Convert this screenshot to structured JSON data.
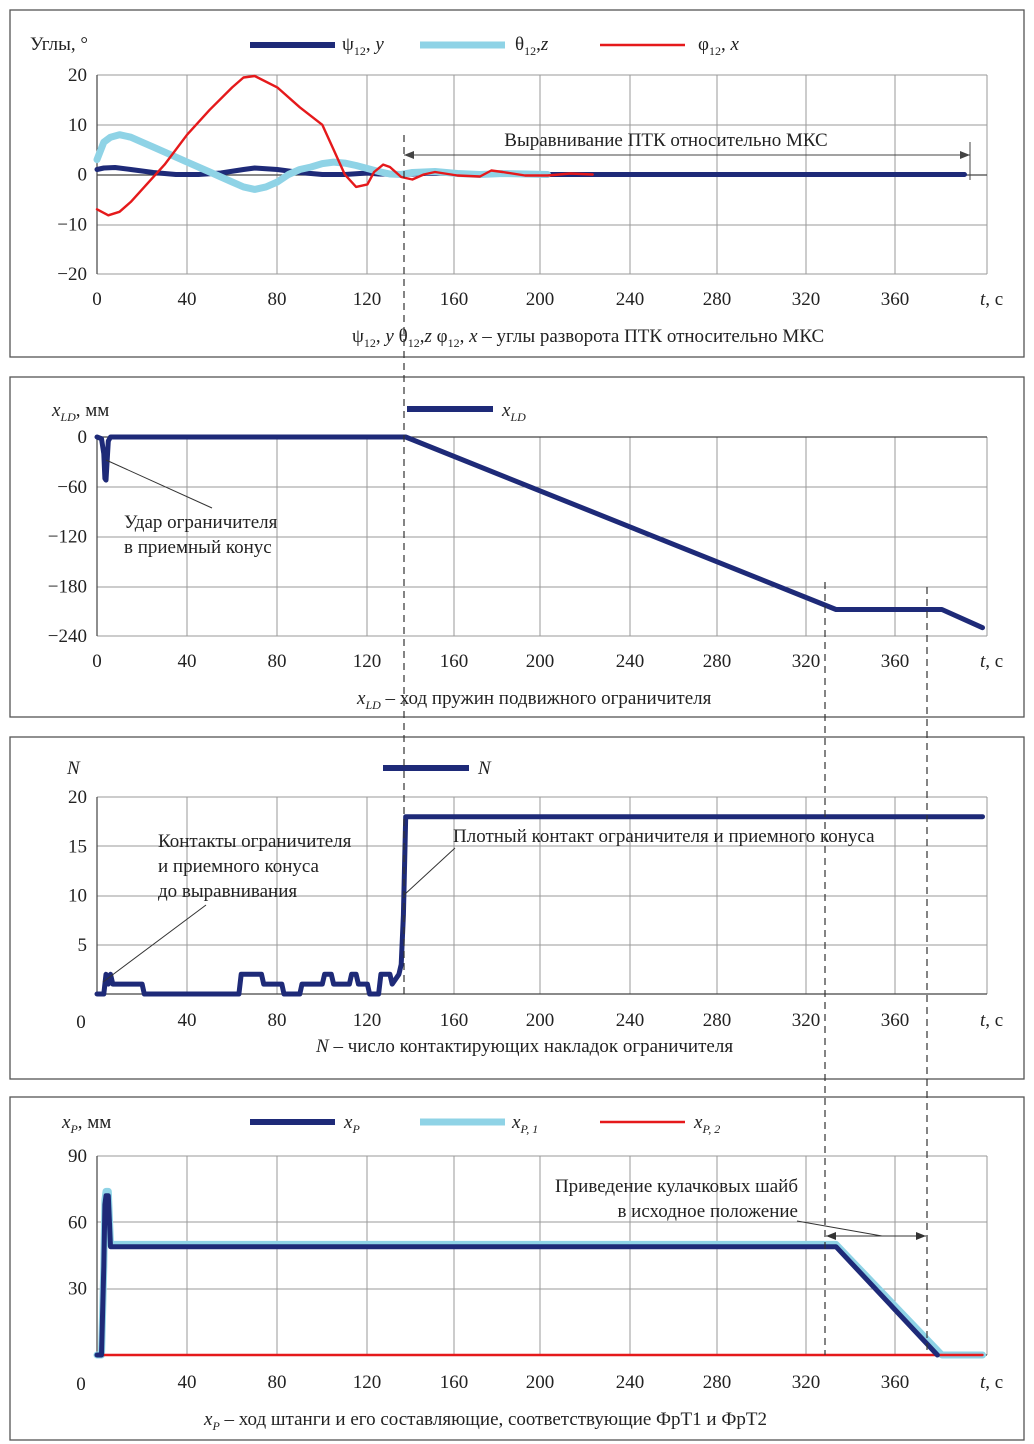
{
  "colors": {
    "dark_navy": "#1e2a78",
    "light_blue": "#8fd3e6",
    "red": "#e5191b",
    "grid": "#9a9a9a",
    "text": "#222222"
  },
  "chart_data": [
    {
      "type": "line",
      "ylabel": "Углы, °",
      "xlabel": "t, c",
      "x_ticks": [
        "0",
        "40",
        "80",
        "120",
        "160",
        "200",
        "240",
        "280",
        "320",
        "360"
      ],
      "y_ticks": [
        "20",
        "10",
        "0",
        "−10",
        "−20"
      ],
      "xlim": [
        0,
        395
      ],
      "ylim": [
        -20,
        20
      ],
      "grid": true,
      "legend_position": "top",
      "legend": [
        "ψ12, y",
        "θ12,z",
        "φ12, x"
      ],
      "annotations": [
        "Выравнивание ПТК относительно МКС"
      ],
      "caption": "ψ12, y  θ12,z  φ12, x – углы разворота ПТК относительно МКС",
      "series": [
        {
          "name": "ψ12, y",
          "color": "#1e2a78",
          "x": [
            0,
            3,
            8,
            15,
            25,
            35,
            45,
            55,
            65,
            70,
            80,
            90,
            100,
            110,
            120,
            125,
            135,
            145,
            155,
            165,
            175,
            185,
            200,
            250,
            300,
            350,
            385
          ],
          "y": [
            1,
            1.3,
            1.4,
            1,
            0.4,
            0,
            0,
            0.3,
            1,
            1.3,
            1,
            0.4,
            0,
            0,
            0.3,
            0.1,
            0,
            0.2,
            0.3,
            0.1,
            0,
            0.1,
            0,
            0,
            0,
            0,
            0
          ]
        },
        {
          "name": "θ12,z",
          "color": "#8fd3e6",
          "x": [
            0,
            3,
            6,
            10,
            15,
            20,
            25,
            30,
            40,
            50,
            60,
            65,
            70,
            75,
            80,
            85,
            90,
            95,
            100,
            105,
            110,
            115,
            120,
            125,
            130,
            135,
            140,
            150,
            160,
            170,
            180,
            200
          ],
          "y": [
            3,
            6.5,
            7.5,
            8,
            7.5,
            6.5,
            5.5,
            4.5,
            2.5,
            0.5,
            -1.5,
            -2.5,
            -3,
            -2.5,
            -1.5,
            0,
            1,
            1.5,
            2.2,
            2.5,
            2.3,
            1.8,
            1.2,
            0.6,
            0.1,
            0,
            0.4,
            0.6,
            0.2,
            0,
            0.2,
            0
          ]
        },
        {
          "name": "φ12, x",
          "color": "#e5191b",
          "x": [
            0,
            5,
            10,
            15,
            20,
            30,
            40,
            50,
            60,
            65,
            70,
            80,
            90,
            100,
            105,
            110,
            115,
            120,
            123,
            127,
            130,
            135,
            140,
            145,
            150,
            160,
            170,
            175,
            180,
            190,
            200,
            210,
            220
          ],
          "y": [
            -7,
            -8.2,
            -7.5,
            -5.5,
            -3,
            2,
            8,
            13,
            17.5,
            19.5,
            19.8,
            17.5,
            13.5,
            10,
            5,
            0,
            -2.5,
            -2,
            0.5,
            2,
            1.5,
            -0.5,
            -1,
            0,
            0.5,
            -0.2,
            -0.4,
            0.8,
            0.5,
            -0.2,
            -0.2,
            0.2,
            0
          ]
        }
      ]
    },
    {
      "type": "line",
      "ylabel": "xLD, мм",
      "xlabel": "t, c",
      "x_ticks": [
        "0",
        "40",
        "80",
        "120",
        "160",
        "200",
        "240",
        "280",
        "320",
        "360"
      ],
      "y_ticks": [
        "0",
        "−60",
        "−120",
        "−180",
        "−240"
      ],
      "xlim": [
        0,
        395
      ],
      "ylim": [
        -240,
        0
      ],
      "grid": true,
      "legend_position": "top",
      "legend": [
        "xLD"
      ],
      "annotations": [
        "Удар ограничителя",
        "в приемный конус"
      ],
      "caption": "xLD – ход пружин подвижного ограничителя",
      "series": [
        {
          "name": "xLD",
          "color": "#1e2a78",
          "x": [
            0,
            2,
            3,
            3.5,
            4,
            5,
            6,
            10,
            137,
            328,
            375,
            393
          ],
          "y": [
            0,
            -2,
            -20,
            -50,
            -52,
            -5,
            0,
            0,
            0,
            -208,
            -208,
            -230
          ]
        }
      ]
    },
    {
      "type": "line",
      "ylabel": "N",
      "xlabel": "t, c",
      "x_ticks": [
        "0",
        "40",
        "80",
        "120",
        "160",
        "200",
        "240",
        "280",
        "320",
        "360"
      ],
      "y_ticks": [
        "20",
        "15",
        "10",
        "5"
      ],
      "x_origin_label": "0",
      "xlim": [
        0,
        395
      ],
      "ylim": [
        0,
        20
      ],
      "grid": true,
      "legend_position": "top",
      "legend": [
        "N"
      ],
      "annotations": [
        "Контакты ограничителя",
        "и приемного конуса",
        "до выравнивания",
        "Плотный контакт ограничителя и приемного конуса"
      ],
      "caption": "N – число контактирующих накладок ограничителя",
      "series": [
        {
          "name": "N",
          "color": "#1e2a78",
          "x": [
            0,
            3,
            4,
            5,
            6,
            7,
            20,
            21,
            63,
            64,
            73,
            74,
            82,
            83,
            90,
            91,
            100,
            101,
            104,
            105,
            112,
            113,
            115,
            116,
            120,
            121,
            125,
            126,
            130,
            131,
            134,
            135,
            136,
            137,
            393
          ],
          "y": [
            0,
            0,
            2,
            1,
            2,
            1,
            1,
            0,
            0,
            2,
            2,
            1,
            1,
            0,
            0,
            1,
            1,
            2,
            2,
            1,
            1,
            2,
            2,
            1,
            1,
            0,
            0,
            2,
            2,
            1,
            2,
            3,
            8,
            18,
            18
          ]
        }
      ]
    },
    {
      "type": "line",
      "ylabel": "xP, мм",
      "xlabel": "t, c",
      "x_ticks": [
        "0",
        "40",
        "80",
        "120",
        "160",
        "200",
        "240",
        "280",
        "320",
        "360"
      ],
      "y_ticks": [
        "90",
        "60",
        "30"
      ],
      "x_origin_label": "0",
      "xlim": [
        0,
        395
      ],
      "ylim": [
        0,
        90
      ],
      "grid": true,
      "legend_position": "top",
      "legend": [
        "xP",
        "xP, 1",
        "xP, 2"
      ],
      "annotations": [
        "Приведение кулачковых шайб",
        "в исходное положение"
      ],
      "caption": "xP – ход штанги и его составляющие, соответствующие ФрТ1 и ФрТ2",
      "series": [
        {
          "name": "xP, 1",
          "color": "#8fd3e6",
          "x": [
            0,
            2,
            3,
            3.5,
            4,
            5,
            6,
            8,
            137,
            328,
            375,
            393
          ],
          "y": [
            0,
            0,
            40,
            70,
            74,
            74,
            50,
            50,
            50,
            50,
            0,
            0
          ]
        },
        {
          "name": "xP, 2",
          "color": "#e5191b",
          "x": [
            0,
            393
          ],
          "y": [
            0,
            0
          ]
        },
        {
          "name": "xP",
          "color": "#1e2a78",
          "x": [
            0,
            2,
            3,
            3.5,
            4,
            5,
            6,
            8,
            137,
            328,
            373
          ],
          "y": [
            0,
            0,
            40,
            68,
            72,
            72,
            49,
            49,
            49,
            49,
            0
          ]
        }
      ]
    }
  ]
}
